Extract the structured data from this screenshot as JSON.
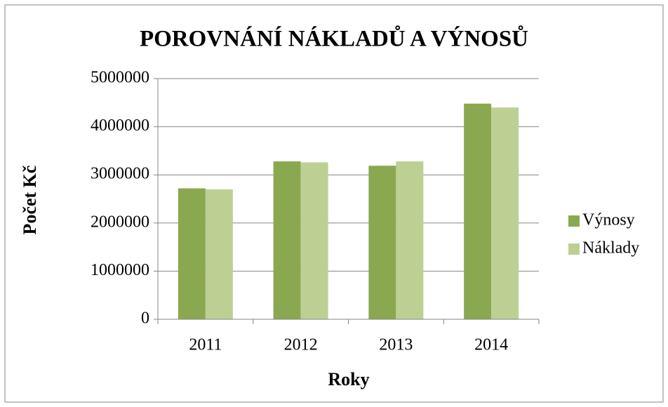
{
  "chart_data": {
    "type": "bar",
    "title": "POROVNÁNÍ NÁKLADŮ A VÝNOSŮ",
    "x_label": "Roky",
    "y_label": "Počet Kč",
    "categories": [
      "2011",
      "2012",
      "2013",
      "2014"
    ],
    "series": [
      {
        "name": "Výnosy",
        "color": "#8aa84f",
        "values": [
          2720000,
          3280000,
          3190000,
          4480000
        ]
      },
      {
        "name": "Náklady",
        "color": "#bcd094",
        "values": [
          2700000,
          3260000,
          3280000,
          4400000
        ]
      }
    ],
    "ylim": [
      0,
      5000000
    ],
    "yticks": [
      0,
      1000000,
      2000000,
      3000000,
      4000000,
      5000000
    ],
    "grid": true,
    "legend": "right"
  }
}
